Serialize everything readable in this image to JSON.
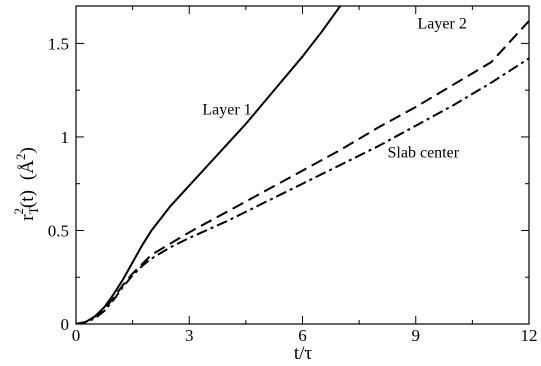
{
  "chart_data": {
    "type": "line",
    "xlabel": "t/τ",
    "ylabel": {
      "main": "r",
      "subscript": "T",
      "superscript": "2",
      "arg": "(t)",
      "unit_prefix": "(",
      "unit": "Å",
      "unit_superscript": "2",
      "unit_suffix": ")"
    },
    "xlim": [
      0,
      12
    ],
    "ylim": [
      0,
      1.7
    ],
    "x_ticks": [
      0,
      3,
      6,
      9,
      12
    ],
    "x_tick_labels": [
      "0",
      "3",
      "6",
      "9",
      "12"
    ],
    "y_ticks": [
      0,
      0.5,
      1,
      1.5
    ],
    "y_tick_labels": [
      "0",
      "0.5",
      "1",
      "1.5"
    ],
    "grid": false,
    "series": [
      {
        "name": "Layer 1",
        "style": "solid",
        "x": [
          0,
          0.25,
          0.5,
          0.75,
          1.0,
          1.25,
          1.5,
          1.75,
          2.0,
          2.5,
          3.0,
          3.5,
          4.0,
          4.5,
          5.0,
          5.5,
          6.0,
          6.5,
          7.0
        ],
        "y": [
          0,
          0.01,
          0.04,
          0.09,
          0.16,
          0.24,
          0.33,
          0.42,
          0.5,
          0.63,
          0.74,
          0.85,
          0.96,
          1.07,
          1.19,
          1.31,
          1.43,
          1.56,
          1.7
        ]
      },
      {
        "name": "Layer 2",
        "style": "dashed",
        "x": [
          0,
          0.25,
          0.5,
          0.75,
          1.0,
          1.25,
          1.5,
          1.75,
          2.0,
          2.5,
          3.0,
          4.0,
          5.0,
          6.0,
          7.0,
          8.0,
          9.0,
          10.0,
          11.0,
          12.0
        ],
        "y": [
          0,
          0.01,
          0.04,
          0.08,
          0.14,
          0.21,
          0.27,
          0.32,
          0.37,
          0.43,
          0.49,
          0.6,
          0.71,
          0.82,
          0.93,
          1.05,
          1.16,
          1.28,
          1.4,
          1.62
        ]
      },
      {
        "name": "Slab center",
        "style": "dashdot",
        "x": [
          0,
          0.25,
          0.5,
          0.75,
          1.0,
          1.25,
          1.5,
          1.75,
          2.0,
          2.5,
          3.0,
          4.0,
          5.0,
          6.0,
          7.0,
          8.0,
          9.0,
          10.0,
          11.0,
          12.0
        ],
        "y": [
          0,
          0.01,
          0.03,
          0.07,
          0.13,
          0.2,
          0.26,
          0.31,
          0.35,
          0.41,
          0.46,
          0.55,
          0.65,
          0.75,
          0.85,
          0.95,
          1.06,
          1.17,
          1.29,
          1.42
        ]
      }
    ],
    "annotations": [
      {
        "text": "Layer 1",
        "x": 4.0,
        "y": 1.12
      },
      {
        "text": "Layer 2",
        "x": 9.7,
        "y": 1.58
      },
      {
        "text": "Slab center",
        "x": 9.2,
        "y": 0.89
      }
    ]
  }
}
